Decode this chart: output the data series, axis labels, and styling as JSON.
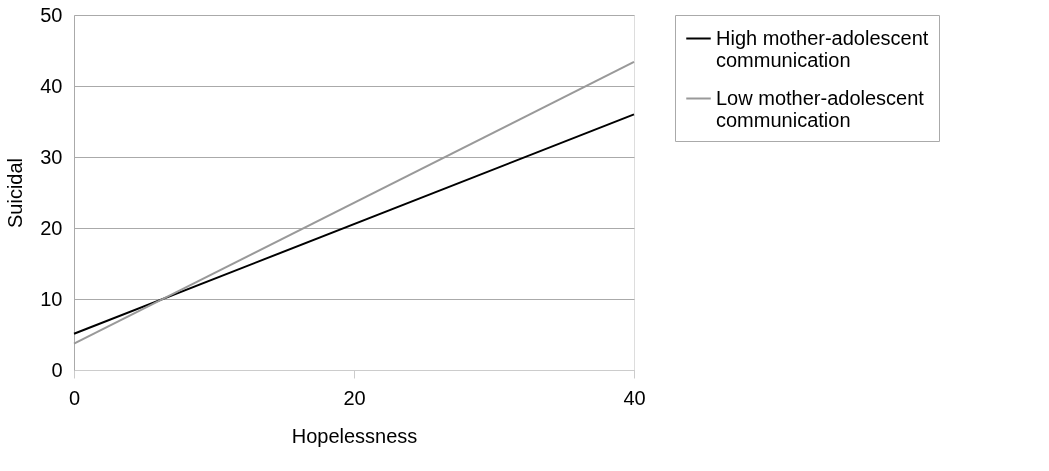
{
  "chart_data": {
    "type": "line",
    "xlabel": "Hopelessness",
    "ylabel": "Suicidal",
    "x": [
      0,
      40
    ],
    "series": [
      {
        "name": "High mother-adolescent communication",
        "color": "#000000",
        "values": [
          5.1,
          36.0
        ]
      },
      {
        "name": "Low mother-adolescent communication",
        "color": "#999999",
        "values": [
          3.7,
          43.4
        ]
      }
    ],
    "xlim": [
      0,
      40
    ],
    "xticks": [
      0,
      20,
      40
    ],
    "ylim": [
      0,
      50
    ],
    "yticks": [
      0,
      10,
      20,
      30,
      40,
      50
    ],
    "grid": "y",
    "legend": "right",
    "marker": "none",
    "line_style": "solid"
  }
}
